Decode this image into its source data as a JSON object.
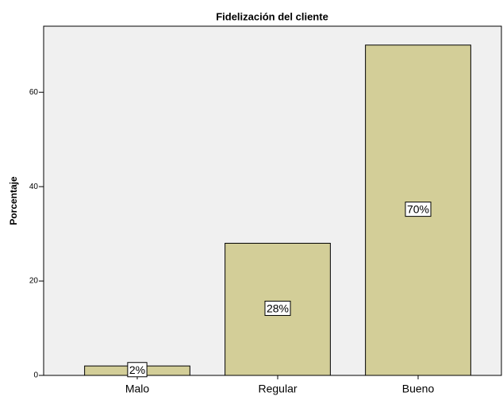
{
  "chart_data": {
    "type": "bar",
    "title": "Fidelización del cliente",
    "y_label": "Porcentaje",
    "categories": [
      "Malo",
      "Regular",
      "Bueno"
    ],
    "values": [
      2,
      28,
      70
    ],
    "value_labels": [
      "2%",
      "28%",
      "70%"
    ],
    "color": "#d3ce98",
    "ylim": [
      0,
      74
    ],
    "yticks": [
      0,
      20,
      40,
      60
    ]
  }
}
